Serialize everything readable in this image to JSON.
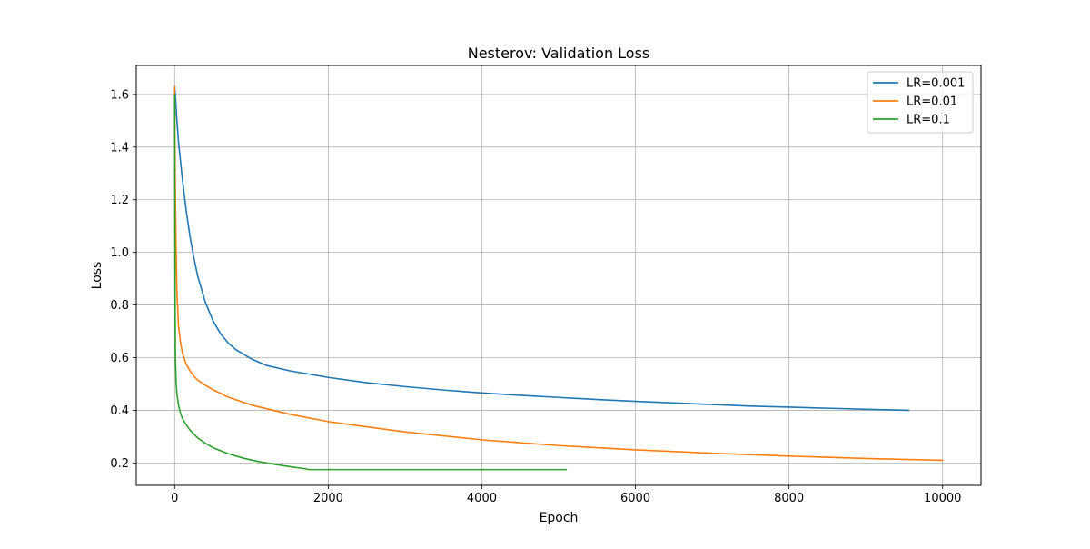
{
  "chart_data": {
    "type": "line",
    "title": "Nesterov: Validation Loss",
    "xlabel": "Epoch",
    "ylabel": "Loss",
    "xlim": [
      -500,
      10500
    ],
    "ylim": [
      0.115,
      1.71
    ],
    "xticks": [
      0,
      2000,
      4000,
      6000,
      8000,
      10000
    ],
    "xtick_labels": [
      "0",
      "2000",
      "4000",
      "6000",
      "8000",
      "10000"
    ],
    "yticks": [
      0.2,
      0.4,
      0.6,
      0.8,
      1.0,
      1.2,
      1.4,
      1.6
    ],
    "ytick_labels": [
      "0.2",
      "0.4",
      "0.6",
      "0.8",
      "1.0",
      "1.2",
      "1.4",
      "1.6"
    ],
    "grid": true,
    "legend_position": "top-right",
    "series": [
      {
        "name": "LR=0.001",
        "color": "#1f77b4",
        "x": [
          0,
          10,
          25,
          50,
          75,
          100,
          150,
          200,
          250,
          300,
          400,
          500,
          600,
          700,
          800,
          1000,
          1200,
          1500,
          1800,
          2000,
          2500,
          3000,
          3500,
          4000,
          4500,
          5000,
          5500,
          6000,
          6500,
          7000,
          7500,
          8000,
          8500,
          9000,
          9560
        ],
        "y": [
          1.63,
          1.6,
          1.52,
          1.42,
          1.35,
          1.28,
          1.16,
          1.06,
          0.98,
          0.91,
          0.81,
          0.74,
          0.69,
          0.655,
          0.63,
          0.595,
          0.57,
          0.55,
          0.535,
          0.525,
          0.505,
          0.49,
          0.477,
          0.466,
          0.457,
          0.449,
          0.441,
          0.434,
          0.428,
          0.422,
          0.416,
          0.412,
          0.408,
          0.404,
          0.4
        ]
      },
      {
        "name": "LR=0.01",
        "color": "#ff7f0e",
        "x": [
          0,
          5,
          10,
          20,
          30,
          50,
          75,
          100,
          150,
          200,
          250,
          300,
          400,
          500,
          700,
          1000,
          1500,
          2000,
          3000,
          4000,
          5000,
          6000,
          7000,
          8000,
          9000,
          10000
        ],
        "y": [
          1.63,
          1.4,
          1.2,
          1.0,
          0.85,
          0.72,
          0.66,
          0.62,
          0.575,
          0.55,
          0.53,
          0.515,
          0.495,
          0.478,
          0.45,
          0.42,
          0.385,
          0.357,
          0.318,
          0.288,
          0.266,
          0.25,
          0.237,
          0.226,
          0.217,
          0.21
        ]
      },
      {
        "name": "LR=0.1",
        "color": "#2ca02c",
        "x": [
          0,
          2,
          5,
          10,
          20,
          30,
          50,
          75,
          100,
          150,
          200,
          300,
          400,
          500,
          700,
          900,
          1100,
          1300,
          1500,
          1700,
          1750,
          2500,
          3500,
          4500,
          5100
        ],
        "y": [
          1.6,
          1.2,
          0.85,
          0.6,
          0.5,
          0.46,
          0.42,
          0.39,
          0.37,
          0.345,
          0.325,
          0.295,
          0.275,
          0.258,
          0.235,
          0.218,
          0.205,
          0.195,
          0.186,
          0.178,
          0.175,
          0.175,
          0.175,
          0.175,
          0.175
        ]
      }
    ]
  }
}
